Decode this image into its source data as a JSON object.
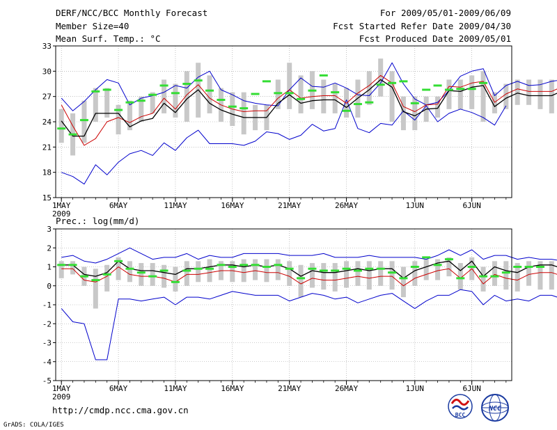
{
  "header": {
    "title": "DERF/NCC/BCC Monthly Forecast",
    "member_size": "Member Size=40",
    "variable": "Mean Surf. Temp.: °C",
    "period": "For 2009/05/01-2009/06/09",
    "fcst_started": "Fcst Started Refer Date 2009/04/30",
    "fcst_produced": "Fcst Produced Date 2009/05/01"
  },
  "footer": {
    "url": "http://cmdp.ncc.cma.gov.cn",
    "grads": "GrADS: COLA/IGES",
    "logo_left": "BCC",
    "logo_right": "NCC"
  },
  "colors": {
    "ensemble_mean": "#000000",
    "envelope": "#0000cc",
    "offset_line": "#cc0000",
    "observed_marker": "#33dd33",
    "member_spread_bar": "#c8c8c8"
  },
  "chart_data": [
    {
      "type": "line",
      "title": "Mean Surf. Temp.: °C",
      "x_tick_labels": [
        "1MAY",
        "6MAY",
        "11MAY",
        "16MAY",
        "21MAY",
        "26MAY",
        "1JUN",
        "6JUN"
      ],
      "x_tick_days": [
        0,
        5,
        10,
        15,
        20,
        25,
        31,
        36
      ],
      "x_year_label": "2009",
      "ylim": [
        15,
        33
      ],
      "y_ticks": [
        15,
        18,
        21,
        24,
        27,
        30,
        33
      ],
      "series": [
        {
          "name": "max",
          "values": [
            26.8,
            25.3,
            26.4,
            27.8,
            29.0,
            28.6,
            26.0,
            26.8,
            27.1,
            27.5,
            28.3,
            28.0,
            29.3,
            30.0,
            27.8,
            27.2,
            26.5,
            26.2,
            26.0,
            25.9,
            27.8,
            29.2,
            28.2,
            28.1,
            28.6,
            28.0,
            27.2,
            27.1,
            28.6,
            31.0,
            28.5,
            26.7,
            26.0,
            26.3,
            27.7,
            29.4,
            30.0,
            30.3,
            27.1,
            28.3,
            28.8,
            28.3,
            28.4,
            28.8,
            29.0,
            29.7
          ]
        },
        {
          "name": "mean",
          "values": [
            24.1,
            22.3,
            22.3,
            25.0,
            25.0,
            25.0,
            23.4,
            24.1,
            24.4,
            26.2,
            25.1,
            26.7,
            27.8,
            26.2,
            25.4,
            24.9,
            24.5,
            24.5,
            24.5,
            26.2,
            27.2,
            26.2,
            26.5,
            26.6,
            26.6,
            25.7,
            26.8,
            27.8,
            29.0,
            28.1,
            25.2,
            24.7,
            25.5,
            25.6,
            27.7,
            27.6,
            28.1,
            28.3,
            25.8,
            26.8,
            27.4,
            27.1,
            27.1,
            27.1,
            27.7
          ]
        },
        {
          "name": "offset",
          "values": [
            26.0,
            23.5,
            21.2,
            22.0,
            24.0,
            24.5,
            23.9,
            24.6,
            25.0,
            26.8,
            25.5,
            27.2,
            28.4,
            26.8,
            26.0,
            25.5,
            25.2,
            25.3,
            25.3,
            26.8,
            27.8,
            26.8,
            27.0,
            27.1,
            27.1,
            26.2,
            27.4,
            28.3,
            29.5,
            28.6,
            25.8,
            25.2,
            26.0,
            26.1,
            28.2,
            28.1,
            28.6,
            28.8,
            26.3,
            27.3,
            27.9,
            27.6,
            27.6,
            27.6,
            28.2
          ]
        },
        {
          "name": "min",
          "values": [
            18.0,
            17.5,
            16.6,
            18.9,
            17.7,
            19.2,
            20.2,
            20.6,
            20.0,
            21.5,
            20.6,
            22.1,
            23.0,
            21.4,
            21.4,
            21.4,
            21.2,
            21.7,
            22.8,
            22.6,
            21.9,
            22.4,
            23.7,
            22.9,
            23.2,
            26.6,
            23.2,
            22.7,
            23.8,
            23.6,
            25.3,
            24.2,
            25.9,
            24.0,
            25.0,
            25.5,
            25.1,
            24.5,
            23.6,
            25.9
          ]
        },
        {
          "name": "observed",
          "values": [
            23.2,
            22.5,
            24.2,
            27.6,
            27.8,
            25.4,
            26.3,
            26.5,
            27.2,
            28.3,
            27.4,
            28.5,
            28.9,
            27.7,
            26.6,
            25.8,
            25.6,
            27.3,
            28.8,
            27.4,
            27.4,
            26.7,
            27.7,
            29.5,
            27.5,
            25.3,
            26.1,
            26.3,
            28.4,
            28.6,
            28.8,
            26.2,
            27.8,
            28.3,
            27.8,
            27.9,
            27.9,
            28.6
          ]
        },
        {
          "name": "spread_low",
          "values": [
            21.5,
            20.0,
            21.5,
            24.0,
            24.5,
            22.5,
            23.0,
            24.0,
            25.0,
            25.0,
            24.5,
            24.0,
            24.5,
            25.0,
            24.0,
            23.5,
            22.5,
            23.0,
            23.0,
            25.5,
            25.5,
            25.0,
            25.5,
            25.0,
            25.0,
            24.5,
            24.5,
            26.0,
            27.0,
            24.0,
            23.0,
            23.0,
            24.0,
            24.5,
            25.5,
            25.5,
            25.5,
            24.0,
            25.0,
            25.5,
            26.0,
            26.0,
            25.5,
            25.0
          ]
        },
        {
          "name": "spread_high",
          "values": [
            25.5,
            25.0,
            26.5,
            28.0,
            28.0,
            26.0,
            26.5,
            27.0,
            27.5,
            29.0,
            28.5,
            30.0,
            31.0,
            29.5,
            28.0,
            27.5,
            27.5,
            26.0,
            26.0,
            29.0,
            31.0,
            29.5,
            30.0,
            29.0,
            28.5,
            28.0,
            29.0,
            30.0,
            31.5,
            30.0,
            27.0,
            27.0,
            27.0,
            27.0,
            29.0,
            29.0,
            29.5,
            30.0,
            27.5,
            28.5,
            29.0,
            29.0,
            29.0,
            29.0,
            29.5
          ]
        }
      ]
    },
    {
      "type": "line",
      "title": "Prec.: log(mm/d)",
      "x_tick_labels": [
        "1MAY",
        "6MAY",
        "11MAY",
        "16MAY",
        "21MAY",
        "26MAY",
        "1JUN",
        "6JUN"
      ],
      "x_tick_days": [
        0,
        5,
        10,
        15,
        20,
        25,
        31,
        36
      ],
      "x_year_label": "2009",
      "ylim": [
        -5,
        3
      ],
      "y_ticks": [
        -5,
        -4,
        -3,
        -2,
        -1,
        0,
        1,
        2,
        3
      ],
      "series": [
        {
          "name": "max",
          "values": [
            1.5,
            1.6,
            1.3,
            1.2,
            1.4,
            1.7,
            2.0,
            1.7,
            1.4,
            1.5,
            1.5,
            1.7,
            1.4,
            1.6,
            1.5,
            1.5,
            1.7,
            1.7,
            1.7,
            1.7,
            1.6,
            1.6,
            1.6,
            1.7,
            1.5,
            1.5,
            1.5,
            1.6,
            1.5,
            1.5,
            1.5,
            1.5,
            1.4,
            1.6,
            1.9,
            1.6,
            1.9,
            1.4,
            1.6,
            1.6,
            1.4,
            1.5,
            1.4,
            1.4,
            1.3
          ]
        },
        {
          "name": "mean",
          "values": [
            1.1,
            1.1,
            0.6,
            0.5,
            0.7,
            1.3,
            0.9,
            0.8,
            0.8,
            0.7,
            0.6,
            0.9,
            0.9,
            1.0,
            1.1,
            1.1,
            1.0,
            1.1,
            1.0,
            1.1,
            0.9,
            0.5,
            0.8,
            0.7,
            0.7,
            0.8,
            0.9,
            0.8,
            0.9,
            0.9,
            0.4,
            0.8,
            1.0,
            1.2,
            1.3,
            0.8,
            1.3,
            0.5,
            1.0,
            0.8,
            0.7,
            1.0,
            1.1,
            1.1,
            0.9
          ]
        },
        {
          "name": "offset",
          "values": [
            0.9,
            0.9,
            0.3,
            0.2,
            0.5,
            1.0,
            0.6,
            0.5,
            0.5,
            0.4,
            0.2,
            0.6,
            0.6,
            0.7,
            0.8,
            0.8,
            0.7,
            0.8,
            0.7,
            0.7,
            0.5,
            0.1,
            0.4,
            0.3,
            0.3,
            0.4,
            0.5,
            0.4,
            0.5,
            0.5,
            0.0,
            0.4,
            0.6,
            0.8,
            0.9,
            0.4,
            0.9,
            0.1,
            0.6,
            0.4,
            0.3,
            0.6,
            0.7,
            0.7,
            0.5
          ]
        },
        {
          "name": "min",
          "values": [
            -1.2,
            -1.9,
            -2.0,
            -3.9,
            -3.9,
            -0.7,
            -0.7,
            -0.8,
            -0.7,
            -0.6,
            -1.0,
            -0.6,
            -0.6,
            -0.7,
            -0.5,
            -0.3,
            -0.4,
            -0.5,
            -0.5,
            -0.5,
            -0.8,
            -0.6,
            -0.4,
            -0.5,
            -0.7,
            -0.6,
            -0.9,
            -0.7,
            -0.5,
            -0.4,
            -0.8,
            -1.2,
            -0.8,
            -0.5,
            -0.5,
            -0.2,
            -0.3,
            -1.0,
            -0.5,
            -0.8,
            -0.7,
            -0.8,
            -0.5,
            -0.5,
            -0.7
          ]
        },
        {
          "name": "observed",
          "values": [
            1.1,
            1.1,
            0.5,
            0.3,
            0.6,
            1.3,
            0.9,
            0.7,
            0.5,
            0.8,
            0.2,
            0.8,
            0.9,
            0.9,
            1.1,
            1.0,
            1.1,
            1.1,
            1.0,
            1.1,
            0.9,
            0.4,
            0.9,
            0.8,
            0.8,
            0.9,
            0.8,
            0.9,
            0.9,
            0.7,
            0.4,
            1.0,
            1.5,
            1.1,
            1.4,
            0.4,
            1.0,
            0.5,
            0.5,
            0.7,
            1.0,
            1.0,
            1.0
          ]
        },
        {
          "name": "spread_low",
          "values": [
            0.4,
            0.6,
            0.0,
            -1.2,
            -0.3,
            0.3,
            0.2,
            0.0,
            0.0,
            -0.1,
            -0.3,
            0.0,
            0.2,
            0.2,
            0.3,
            0.2,
            0.2,
            0.3,
            0.2,
            0.3,
            0.0,
            -0.6,
            -0.1,
            -0.2,
            -0.3,
            -0.1,
            0.0,
            -0.2,
            0.0,
            -0.2,
            -0.6,
            0.0,
            0.3,
            0.3,
            0.5,
            -0.2,
            0.3,
            -0.3,
            0.0,
            -0.2,
            -0.3,
            0.0,
            -0.2,
            -0.2,
            -0.2
          ]
        },
        {
          "name": "spread_high",
          "values": [
            1.3,
            1.3,
            1.0,
            0.9,
            1.1,
            1.5,
            1.3,
            1.2,
            1.2,
            1.1,
            1.0,
            1.3,
            1.3,
            1.4,
            1.3,
            1.3,
            1.4,
            1.4,
            1.4,
            1.4,
            1.3,
            1.1,
            1.2,
            1.2,
            1.2,
            1.3,
            1.3,
            1.3,
            1.3,
            1.3,
            1.0,
            1.3,
            1.4,
            1.4,
            1.5,
            1.2,
            1.5,
            1.0,
            1.3,
            1.3,
            1.2,
            1.3,
            1.3,
            1.3,
            1.2
          ]
        }
      ]
    }
  ]
}
